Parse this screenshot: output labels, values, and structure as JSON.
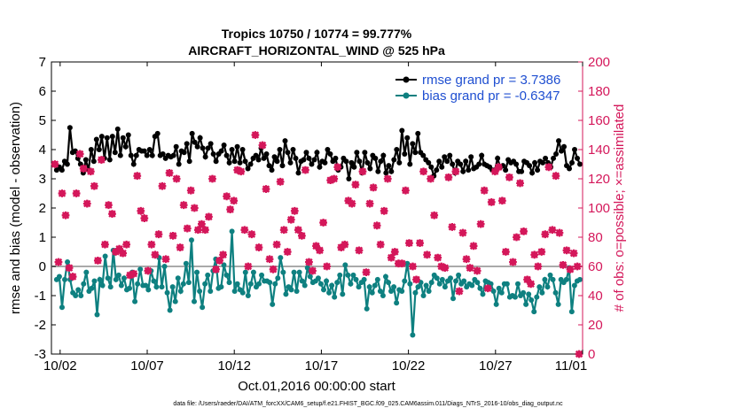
{
  "chart_data": {
    "type": "line",
    "title": "Tropics 10750 / 10774 = 99.777%",
    "subtitle": "AIRCRAFT_HORIZONTAL_WIND @ 525 hPa",
    "xlabel": "Oct.01,2016 00:00:00 start",
    "ylabel_left": "rmse and bias (model - observation)",
    "ylabel_right": "# of obs: o=possible; ×=assimilated",
    "footnote": "data file: /Users/raeder/DAI/ATM_forcXX/CAM6_setup/f.e21.FHIST_BGC.f09_025.CAM6assim.011/Diags_NTrS_2016-10/obs_diag_output.nc",
    "x_ticks": [
      "10/02",
      "10/07",
      "10/12",
      "10/17",
      "10/22",
      "10/27",
      "11/01"
    ],
    "x_tick_days": [
      2,
      7,
      12,
      17,
      22,
      27,
      32
    ],
    "xlim_days": [
      1.5,
      32.0
    ],
    "ylim_left": [
      -3,
      7
    ],
    "yticks_left": [
      "-3",
      "-2",
      "-1",
      "0",
      "1",
      "2",
      "3",
      "4",
      "5",
      "6",
      "7"
    ],
    "ylim_right": [
      0,
      200
    ],
    "yticks_right": [
      "0",
      "20",
      "40",
      "60",
      "80",
      "100",
      "120",
      "140",
      "160",
      "180",
      "200"
    ],
    "grid": false,
    "legend_position": "top-right",
    "x_step_days": 0.25,
    "series": [
      {
        "name": "rmse grand pr = 3.7386",
        "color": "#000000",
        "axis": "left",
        "values": [
          3.3,
          3.4,
          3.3,
          3.6,
          3.5,
          4.75,
          3.9,
          3.95,
          3.7,
          3.5,
          3.2,
          3.65,
          3.3,
          4.0,
          3.6,
          4.35,
          4.0,
          4.45,
          3.7,
          4.4,
          3.65,
          4.45,
          3.9,
          4.7,
          3.8,
          4.4,
          4.1,
          4.5,
          3.8,
          3.5,
          3.8,
          4.0,
          3.95,
          3.95,
          3.8,
          4.0,
          3.8,
          4.45,
          4.55,
          3.8,
          3.85,
          3.7,
          3.8,
          3.75,
          3.8,
          4.1,
          3.5,
          3.95,
          3.9,
          4.2,
          3.6,
          4.55,
          4.25,
          4.1,
          4.4,
          4.05,
          3.75,
          4.05,
          4.2,
          3.85,
          3.6,
          3.85,
          3.95,
          4.15,
          3.8,
          3.55,
          4.0,
          3.6,
          4.1,
          3.55,
          4.0,
          3.6,
          3.35,
          3.5,
          3.7,
          3.8,
          3.65,
          4.05,
          3.7,
          3.85,
          3.45,
          3.3,
          3.75,
          3.6,
          4.0,
          3.45,
          4.3,
          3.9,
          3.55,
          4.0,
          3.7,
          3.2,
          3.6,
          3.65,
          3.9,
          3.7,
          3.5,
          3.65,
          3.9,
          3.4,
          3.6,
          3.55,
          4.0,
          3.85,
          3.6,
          3.7,
          3.3,
          3.4,
          3.7,
          3.6,
          3.0,
          3.55,
          3.4,
          3.9,
          3.6,
          3.2,
          3.9,
          3.55,
          3.35,
          3.8,
          3.7,
          3.25,
          3.6,
          3.8,
          3.2,
          3.45,
          3.25,
          3.65,
          4.0,
          3.55,
          4.65,
          3.85,
          4.4,
          3.5,
          4.2,
          3.9,
          4.55,
          3.9,
          3.8,
          3.65,
          3.55,
          3.4,
          3.1,
          3.3,
          3.6,
          3.4,
          3.75,
          3.6,
          3.8,
          3.5,
          3.2,
          3.6,
          3.5,
          3.25,
          3.6,
          3.3,
          3.75,
          3.35,
          3.4,
          3.5,
          3.8,
          3.5,
          3.45,
          3.4,
          3.3,
          3.3,
          3.7,
          3.4,
          3.45,
          3.3,
          3.65,
          3.55,
          3.6,
          3.5,
          3.25,
          3.25,
          3.6,
          3.55,
          3.45,
          3.2,
          3.55,
          3.3,
          3.6,
          3.55,
          3.7,
          3.55,
          3.4,
          3.7,
          3.85,
          4.3,
          3.95,
          4.1,
          3.45,
          3.35,
          3.55,
          4.0,
          3.7,
          3.5
        ]
      },
      {
        "name": "bias grand pr = -0.6347",
        "color": "#0e8080",
        "axis": "left",
        "values": [
          -0.45,
          -0.35,
          -1.4,
          -0.45,
          0.15,
          -0.45,
          -0.9,
          -1.0,
          -0.8,
          -1.0,
          -0.6,
          -0.2,
          -0.85,
          -0.75,
          -0.5,
          -1.65,
          -0.45,
          -0.65,
          0.35,
          -0.4,
          -0.7,
          0.55,
          -0.45,
          -0.3,
          -0.65,
          -0.4,
          -0.8,
          -0.75,
          -0.2,
          -1.2,
          -0.6,
          -0.1,
          -0.65,
          -0.65,
          -0.8,
          -0.15,
          -0.5,
          -0.7,
          0.3,
          -0.7,
          0.0,
          -0.9,
          -1.5,
          -0.7,
          -1.2,
          -0.4,
          -0.85,
          -0.6,
          0.1,
          -0.55,
          0.9,
          -1.2,
          -0.2,
          -0.85,
          -1.4,
          -0.6,
          -0.3,
          -0.85,
          -0.15,
          0.25,
          -0.75,
          -0.7,
          0.05,
          -0.3,
          -0.55,
          1.2,
          -0.85,
          -0.6,
          -0.8,
          -0.9,
          -0.2,
          -1.0,
          -0.6,
          -0.2,
          -0.7,
          -0.6,
          -0.3,
          -0.5,
          -0.5,
          -0.55,
          -1.3,
          -0.6,
          -0.4,
          0.3,
          -0.2,
          -0.95,
          -0.7,
          -0.8,
          -0.2,
          -0.85,
          -0.2,
          -0.5,
          -0.65,
          -0.05,
          -0.35,
          -0.55,
          -0.5,
          -0.4,
          -0.6,
          -0.8,
          -0.5,
          -0.9,
          -0.65,
          -1.05,
          -0.55,
          -0.3,
          -0.95,
          0.05,
          -0.3,
          -0.6,
          -0.3,
          -0.45,
          -0.7,
          -0.55,
          -0.45,
          -1.45,
          -0.7,
          -0.9,
          -0.65,
          -0.45,
          -0.85,
          -1.0,
          -0.35,
          -0.55,
          -0.85,
          -0.7,
          -1.25,
          -0.8,
          -0.85,
          -0.5,
          0.1,
          -0.6,
          -2.35,
          -0.9,
          -0.7,
          -0.55,
          -1.0,
          -0.65,
          -0.85,
          -0.55,
          -0.3,
          -0.4,
          -0.6,
          -0.45,
          -0.7,
          -0.5,
          -0.4,
          -1.1,
          -0.5,
          -0.3,
          -0.6,
          -0.5,
          -0.7,
          -0.6,
          -0.65,
          -0.45,
          -0.55,
          -0.75,
          -0.95,
          -0.5,
          -0.55,
          -0.6,
          -0.85,
          -1.3,
          -0.75,
          -0.9,
          -0.6,
          -0.6,
          -1.05,
          -1.0,
          -1.05,
          -0.6,
          -1.0,
          -0.9,
          -1.3,
          -0.95,
          -1.15,
          -1.55,
          -1.05,
          -0.7,
          -0.9,
          -0.45,
          -0.7,
          -0.3,
          -0.45,
          -0.9,
          -1.3,
          -0.45,
          -0.55,
          -0.45,
          -0.05,
          -1.55,
          -0.65,
          -0.5,
          -0.45
        ]
      },
      {
        "name": "possible",
        "color": "#d4175a",
        "axis": "right",
        "marker": "circle",
        "values": [
          130,
          63,
          110,
          95,
          59,
          53,
          110,
          137,
          127,
          103,
          125,
          115,
          64,
          133,
          75,
          102,
          96,
          70,
          72,
          69,
          75,
          54,
          55,
          122,
          98,
          93,
          57,
          75,
          68,
          82,
          115,
          65,
          124,
          81,
          120,
          73,
          102,
          86,
          112,
          100,
          85,
          89,
          85,
          94,
          120,
          58,
          64,
          68,
          108,
          99,
          105,
          126,
          125,
          85,
          60,
          82,
          150,
          73,
          143,
          113,
          65,
          58,
          75,
          118,
          85,
          70,
          92,
          98,
          85,
          81,
          126,
          63,
          57,
          74,
          71,
          90,
          60,
          119,
          120,
          128,
          73,
          75,
          105,
          103,
          116,
          71,
          125,
          56,
          103,
          114,
          88,
          75,
          98,
          120,
          66,
          70,
          62,
          62,
          112,
          76,
          60,
          51,
          76,
          125,
          68,
          120,
          95,
          66,
          60,
          59,
          121,
          87,
          125,
          43,
          83,
          65,
          59,
          74,
          57,
          89,
          112,
          45,
          104,
          125,
          128,
          105,
          70,
          121,
          63,
          80,
          117,
          84,
          51,
          48,
          68,
          60,
          70,
          82,
          128,
          85,
          122,
          83,
          61,
          71,
          58,
          69,
          60
        ]
      },
      {
        "name": "assimilated",
        "color": "#d4175a",
        "axis": "right",
        "marker": "cross",
        "values": [
          130,
          63,
          110,
          95,
          59,
          53,
          110,
          137,
          127,
          103,
          125,
          115,
          64,
          133,
          75,
          102,
          96,
          70,
          72,
          69,
          75,
          54,
          55,
          122,
          98,
          93,
          57,
          75,
          68,
          82,
          115,
          65,
          124,
          81,
          120,
          73,
          102,
          86,
          112,
          100,
          85,
          89,
          85,
          94,
          120,
          58,
          64,
          68,
          108,
          99,
          105,
          126,
          125,
          85,
          60,
          82,
          150,
          73,
          143,
          113,
          65,
          58,
          75,
          118,
          85,
          70,
          92,
          98,
          85,
          81,
          126,
          63,
          57,
          74,
          71,
          90,
          60,
          119,
          120,
          128,
          73,
          75,
          105,
          103,
          116,
          71,
          125,
          56,
          103,
          114,
          88,
          75,
          98,
          120,
          66,
          70,
          62,
          62,
          112,
          76,
          60,
          51,
          76,
          125,
          68,
          120,
          95,
          66,
          60,
          59,
          121,
          87,
          125,
          43,
          83,
          65,
          59,
          74,
          57,
          89,
          112,
          45,
          104,
          125,
          128,
          105,
          70,
          121,
          63,
          80,
          117,
          84,
          51,
          48,
          68,
          60,
          70,
          82,
          128,
          85,
          122,
          83,
          61,
          71,
          58,
          69,
          60
        ]
      }
    ],
    "extra_point": {
      "series": "assimilated",
      "x_day": 31.8,
      "value": 0
    }
  }
}
